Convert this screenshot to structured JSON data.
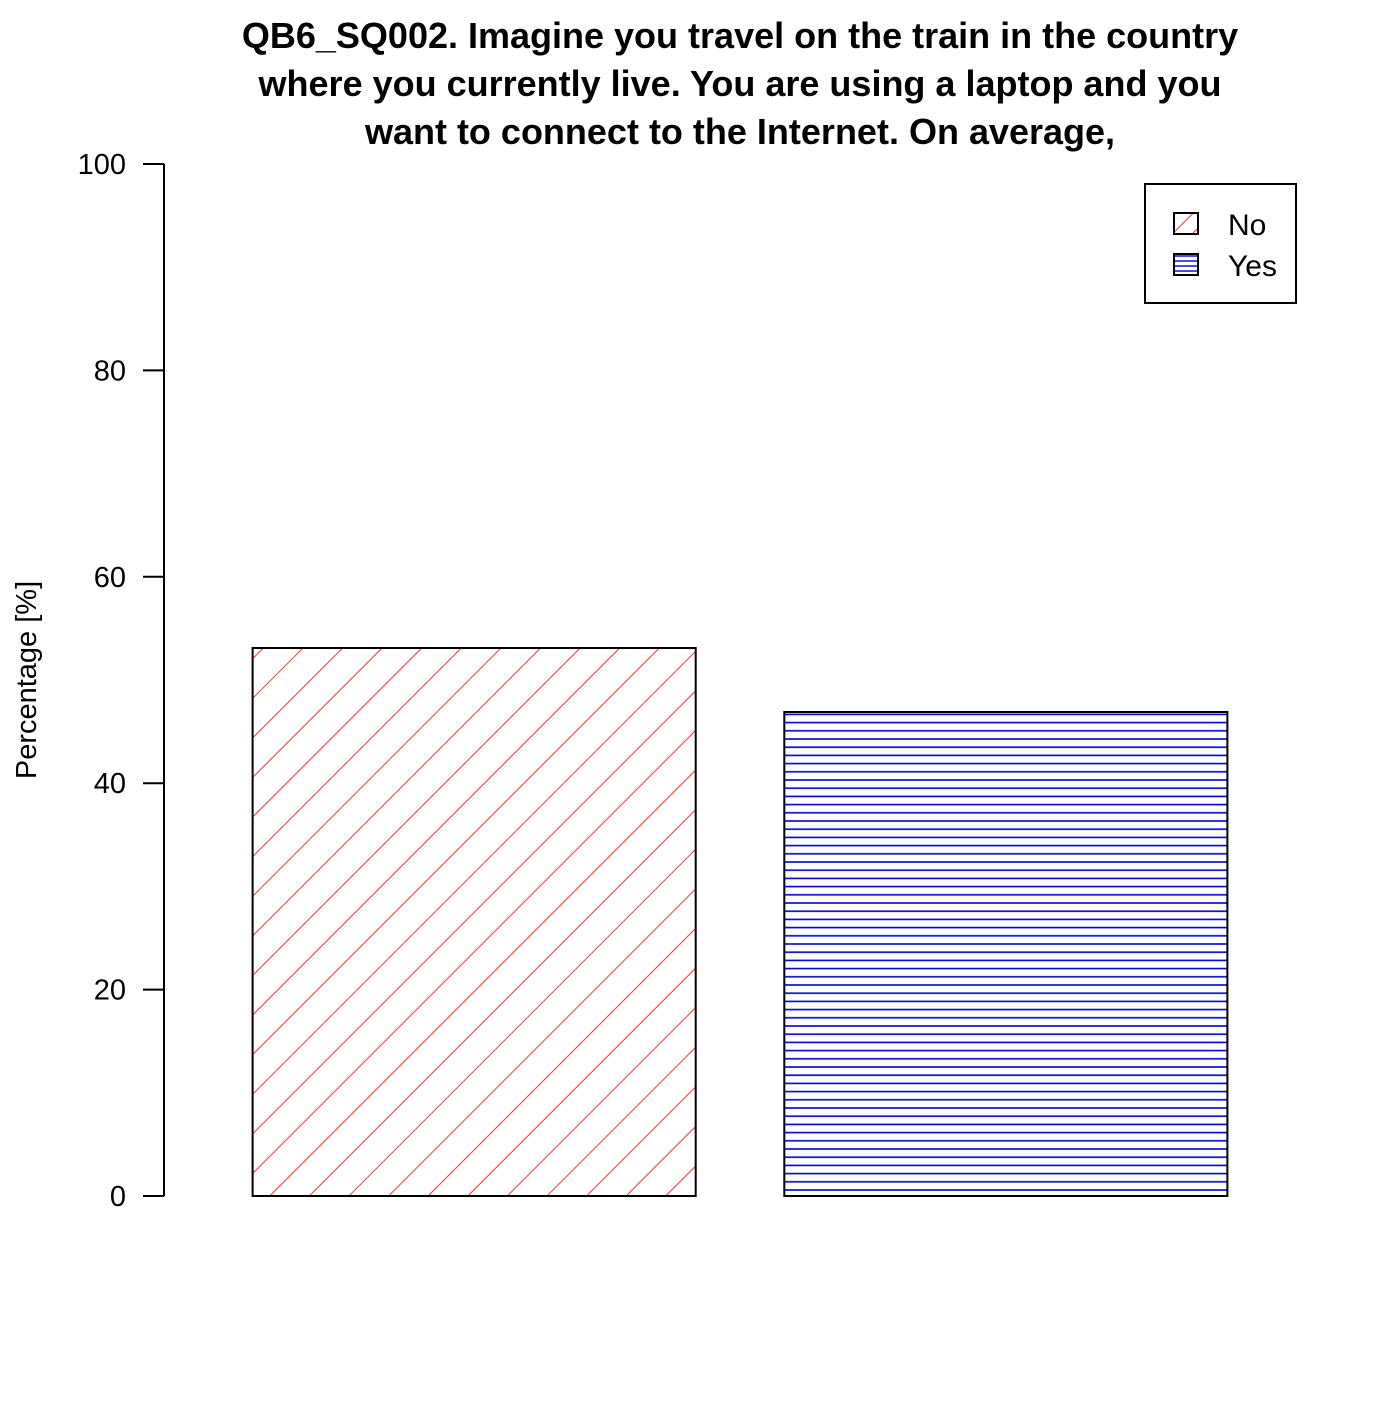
{
  "chart_data": {
    "type": "bar",
    "title": "QB6_SQ002. Imagine you travel on the train in the country where you currently live. You are using a laptop and you want to connect to the Internet. On average,",
    "title_lines": [
      "QB6_SQ002. Imagine you travel on the train in the country",
      "where you currently live. You are using a laptop and you",
      "want to connect to the Internet. On average,"
    ],
    "xlabel": "",
    "ylabel": "Percentage [%]",
    "ylim": [
      0,
      100
    ],
    "yticks": [
      0,
      20,
      40,
      60,
      80,
      100
    ],
    "ytick_labels": [
      "0",
      "20",
      "40",
      "60",
      "80",
      "100"
    ],
    "categories": [
      "No",
      "Yes"
    ],
    "values": [
      53.1,
      46.9
    ],
    "colors": [
      "#ff0000",
      "#0000cc"
    ],
    "patterns": [
      "diagonal-hatch",
      "horizontal-lines"
    ],
    "legend": {
      "placement": "top-right",
      "entries": [
        "No",
        "Yes"
      ]
    },
    "grid": false
  }
}
